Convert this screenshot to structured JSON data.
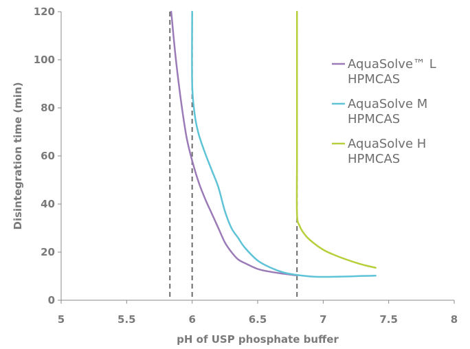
{
  "chart_data": {
    "type": "line",
    "title": "",
    "xlabel": "pH of USP phosphate buffer",
    "ylabel": "Disintegration time (min)",
    "xlim": [
      5,
      8
    ],
    "ylim": [
      0,
      120
    ],
    "x_ticks": [
      "5",
      "5.5",
      "6",
      "6.5",
      "7",
      "7.5",
      "8"
    ],
    "y_ticks": [
      "0",
      "20",
      "40",
      "60",
      "80",
      "100",
      "120"
    ],
    "grid": false,
    "legend_position": "right",
    "reference_lines": [
      5.83,
      6.0,
      6.8
    ],
    "series": [
      {
        "name_lines": [
          "AquaSolve™ L",
          "HPMCAS"
        ],
        "color": "#9b7bb7",
        "x": [
          5.84,
          5.87,
          5.9,
          5.93,
          5.96,
          6.0,
          6.05,
          6.1,
          6.15,
          6.2,
          6.25,
          6.3,
          6.35,
          6.4,
          6.5,
          6.6,
          6.7,
          6.8
        ],
        "y": [
          120,
          103,
          89,
          77,
          67,
          58,
          49,
          42,
          36,
          30,
          24,
          20,
          17,
          15.5,
          13,
          11.8,
          11,
          10.3
        ]
      },
      {
        "name_lines": [
          "AquaSolve M",
          "HPMCAS"
        ],
        "color": "#5ec3d6",
        "x": [
          6.0,
          6.0,
          6.02,
          6.05,
          6.1,
          6.15,
          6.2,
          6.25,
          6.3,
          6.35,
          6.4,
          6.5,
          6.6,
          6.7,
          6.8,
          6.9,
          7.0,
          7.1,
          7.2,
          7.3,
          7.4
        ],
        "y": [
          120,
          90,
          77,
          69,
          61,
          54,
          47,
          37,
          30,
          26,
          22,
          16.5,
          13.5,
          11.5,
          10.5,
          9.9,
          9.7,
          9.8,
          9.9,
          10.1,
          10.2
        ]
      },
      {
        "name_lines": [
          "AquaSolve H",
          "HPMCAS"
        ],
        "color": "#b6cf3a",
        "x": [
          6.8,
          6.8,
          6.8,
          6.82,
          6.85,
          6.9,
          7.0,
          7.1,
          7.2,
          7.3,
          7.4
        ],
        "y": [
          120,
          60,
          36,
          31,
          28,
          25,
          21,
          18.5,
          16.5,
          14.8,
          13.5
        ]
      }
    ]
  }
}
